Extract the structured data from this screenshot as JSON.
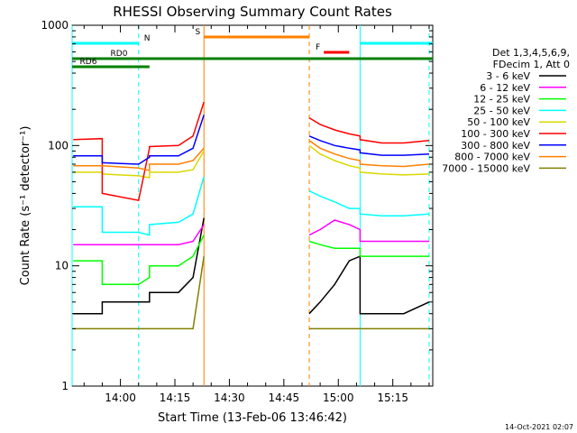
{
  "chart_data": {
    "type": "line",
    "title": "RHESSI Observing Summary Count Rates",
    "xlabel": "Start Time (13-Feb-06 13:46:42)",
    "ylabel": "Count Rate (s⁻¹ detector⁻¹)",
    "x_range": [
      "13:46:42",
      "15:26:00"
    ],
    "xticks": [
      "14:00",
      "14:15",
      "14:30",
      "14:45",
      "15:00",
      "15:15"
    ],
    "yscale": "log",
    "ylim": [
      1,
      1000
    ],
    "yticks": [
      "1",
      "10",
      "100",
      "1000"
    ],
    "footer": "14-Oct-2021 02:07",
    "legend": {
      "placement": "right",
      "header": [
        "Det 1,3,4,5,6,9,",
        "FDecim 1, Att 0"
      ],
      "entries": [
        {
          "label": "3 - 6 keV",
          "color": "#000000"
        },
        {
          "label": "6 - 12 keV",
          "color": "#ff00ff"
        },
        {
          "label": "12 - 25 keV",
          "color": "#00ff00"
        },
        {
          "label": "25 - 50 keV",
          "color": "#00ffff"
        },
        {
          "label": "50 - 100 keV",
          "color": "#d8d800"
        },
        {
          "label": "100 - 300 keV",
          "color": "#ff0000"
        },
        {
          "label": "300 - 800 keV",
          "color": "#0000ff"
        },
        {
          "label": "800 - 7000 keV",
          "color": "#ff8000"
        },
        {
          "label": "7000 - 15000 keV",
          "color": "#808000"
        }
      ]
    },
    "flags": [
      {
        "label": "N",
        "color": "#00ffff",
        "segments": [
          [
            "13:46:42",
            "14:05"
          ],
          [
            "15:06",
            "15:26"
          ]
        ]
      },
      {
        "label": "S",
        "color": "#ff8000",
        "segments": [
          [
            "14:23",
            "14:52"
          ]
        ]
      },
      {
        "label": "F",
        "color": "#ff0000",
        "segments": [
          [
            "14:56",
            "15:03"
          ]
        ]
      },
      {
        "label": "RD0",
        "color": "#008000",
        "segments": [
          [
            "13:46:42",
            "15:26"
          ]
        ]
      },
      {
        "label": "RD6",
        "color": "#008000",
        "segments": [
          [
            "13:46:42",
            "14:08"
          ]
        ]
      }
    ],
    "vertical_markers": [
      {
        "time": "13:46:42",
        "color": "#00ffff",
        "style": "solid"
      },
      {
        "time": "14:05",
        "color": "#00ffff",
        "style": "dashed"
      },
      {
        "time": "14:23",
        "color": "#ff8000",
        "style": "solid"
      },
      {
        "time": "14:52",
        "color": "#ff8000",
        "style": "dashed"
      },
      {
        "time": "15:06",
        "color": "#00ffff",
        "style": "solid"
      },
      {
        "time": "15:25",
        "color": "#00ffff",
        "style": "dashed"
      }
    ],
    "x": [
      "13:47",
      "13:55",
      "13:55",
      "14:05",
      "14:08",
      "14:08",
      "14:16",
      "14:20",
      "14:23",
      "14:52",
      "14:52",
      "14:55",
      "14:59",
      "15:03",
      "15:06",
      "15:06",
      "15:12",
      "15:18",
      "15:25"
    ],
    "series": [
      {
        "name": "3 - 6 keV",
        "values": [
          4,
          4,
          5,
          5,
          5,
          6,
          6,
          8,
          25,
          null,
          4,
          5,
          7,
          11,
          12,
          4,
          4,
          4,
          5
        ]
      },
      {
        "name": "6 - 12 keV",
        "values": [
          15,
          15,
          15,
          15,
          15,
          15,
          15,
          16,
          22,
          null,
          18,
          20,
          24,
          22,
          20,
          16,
          16,
          16,
          16
        ]
      },
      {
        "name": "12 - 25 keV",
        "values": [
          11,
          11,
          7,
          7,
          8,
          10,
          10,
          12,
          18,
          null,
          16,
          15,
          14,
          14,
          14,
          12,
          12,
          12,
          12
        ]
      },
      {
        "name": "25 - 50 keV",
        "values": [
          31,
          31,
          19,
          19,
          18,
          22,
          23,
          27,
          55,
          null,
          42,
          38,
          34,
          30,
          30,
          27,
          26,
          26,
          27
        ]
      },
      {
        "name": "50 - 100 keV",
        "values": [
          60,
          60,
          58,
          56,
          54,
          60,
          60,
          63,
          90,
          null,
          100,
          85,
          75,
          68,
          65,
          60,
          58,
          57,
          58
        ]
      },
      {
        "name": "100 - 300 keV",
        "values": [
          112,
          114,
          40,
          35,
          95,
          98,
          100,
          120,
          230,
          null,
          170,
          150,
          135,
          125,
          120,
          112,
          105,
          105,
          110
        ]
      },
      {
        "name": "300 - 800 keV",
        "values": [
          82,
          82,
          72,
          70,
          80,
          82,
          82,
          95,
          180,
          null,
          120,
          110,
          100,
          95,
          92,
          87,
          83,
          83,
          85
        ]
      },
      {
        "name": "800 - 7000 keV",
        "values": [
          68,
          68,
          68,
          65,
          62,
          70,
          70,
          75,
          95,
          null,
          110,
          95,
          85,
          78,
          75,
          70,
          68,
          67,
          70
        ]
      },
      {
        "name": "7000 - 15000 keV",
        "values": [
          3,
          3,
          3,
          3,
          3,
          3,
          3,
          3,
          12,
          null,
          3,
          3,
          3,
          3,
          3,
          3,
          3,
          3,
          3
        ]
      }
    ]
  }
}
